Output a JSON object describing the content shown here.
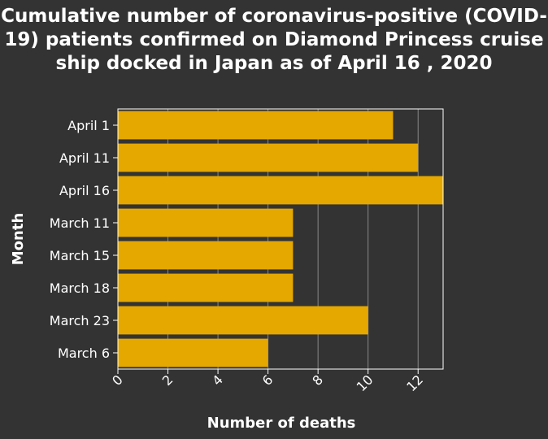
{
  "chart_data": {
    "type": "bar",
    "orientation": "horizontal",
    "title": "Cumulative number of coronavirus-positive (COVID-19) patients confirmed on Diamond Princess cruise ship docked in Japan as of April 16 , 2020",
    "xlabel": "Number of deaths",
    "ylabel": "Month",
    "categories": [
      "April 1",
      "April 11",
      "April 16",
      "March 11",
      "March 15",
      "March 18",
      "March 23",
      "March 6"
    ],
    "values": [
      11,
      12,
      13,
      7,
      7,
      7,
      10,
      6
    ],
    "xlim": [
      0,
      13
    ],
    "xticks": [
      0,
      2,
      4,
      6,
      8,
      10,
      12
    ],
    "grid": "vertical",
    "legend": "none",
    "colors": {
      "bar": "#e5a800",
      "background": "#333333",
      "text": "#ffffff",
      "grid": "#888888"
    }
  }
}
